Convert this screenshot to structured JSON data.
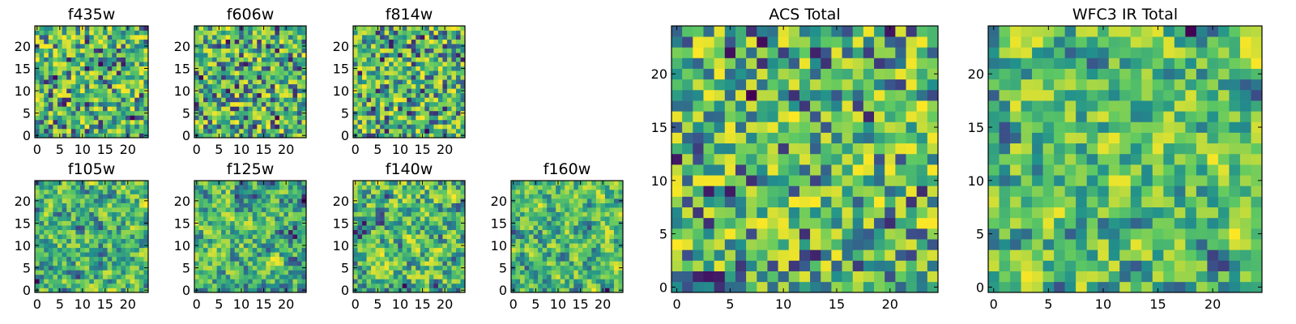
{
  "figure": "HST filter stamps",
  "colormap": [
    "#440154",
    "#3b528b",
    "#21918c",
    "#5ec962",
    "#fde725"
  ],
  "chart_data": [
    {
      "type": "heatmap",
      "title": "f435w",
      "grid": 25,
      "xticks": [
        0,
        5,
        10,
        15,
        20
      ],
      "yticks": [
        0,
        5,
        10,
        15,
        20
      ],
      "pattern": "noise",
      "seed": 11,
      "smooth": 0
    },
    {
      "type": "heatmap",
      "title": "f606w",
      "grid": 25,
      "xticks": [
        0,
        5,
        10,
        15,
        20
      ],
      "yticks": [
        0,
        5,
        10,
        15,
        20
      ],
      "pattern": "noise",
      "seed": 23,
      "smooth": 0
    },
    {
      "type": "heatmap",
      "title": "f814w",
      "grid": 25,
      "xticks": [
        0,
        5,
        10,
        15,
        20
      ],
      "yticks": [
        0,
        5,
        10,
        15,
        20
      ],
      "pattern": "noise",
      "seed": 37,
      "smooth": 0
    },
    {
      "type": "heatmap",
      "title": "f105w",
      "grid": 25,
      "xticks": [
        0,
        5,
        10,
        15,
        20
      ],
      "yticks": [
        0,
        5,
        10,
        15,
        20
      ],
      "pattern": "noise",
      "seed": 41,
      "smooth": 1
    },
    {
      "type": "heatmap",
      "title": "f125w",
      "grid": 25,
      "xticks": [
        0,
        5,
        10,
        15,
        20
      ],
      "yticks": [
        0,
        5,
        10,
        15,
        20
      ],
      "pattern": "noise",
      "seed": 53,
      "smooth": 1
    },
    {
      "type": "heatmap",
      "title": "f140w",
      "grid": 25,
      "xticks": [
        0,
        5,
        10,
        15,
        20
      ],
      "yticks": [
        0,
        5,
        10,
        15,
        20
      ],
      "pattern": "noise",
      "seed": 67,
      "smooth": 1
    },
    {
      "type": "heatmap",
      "title": "f160w",
      "grid": 25,
      "xticks": [
        0,
        5,
        10,
        15,
        20
      ],
      "yticks": [
        0,
        5,
        10,
        15,
        20
      ],
      "pattern": "noise",
      "seed": 79,
      "smooth": 1
    },
    {
      "type": "heatmap",
      "title": "ACS Total",
      "grid": 25,
      "xticks": [
        0,
        5,
        10,
        15,
        20
      ],
      "yticks": [
        0,
        5,
        10,
        15,
        20
      ],
      "pattern": "noise",
      "seed": 97,
      "smooth": 0
    },
    {
      "type": "heatmap",
      "title": "WFC3 IR Total",
      "grid": 25,
      "xticks": [
        0,
        5,
        10,
        15,
        20
      ],
      "yticks": [
        0,
        5,
        10,
        15,
        20
      ],
      "pattern": "noise",
      "seed": 113,
      "smooth": 1
    }
  ]
}
